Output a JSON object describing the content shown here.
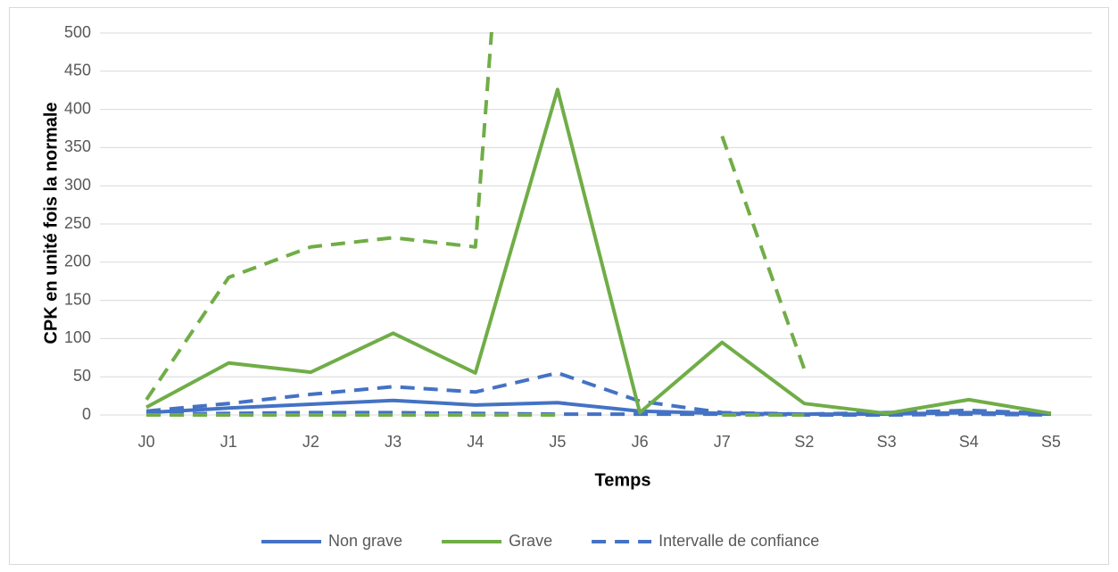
{
  "chart_data": {
    "type": "line",
    "x_label": "Temps",
    "y_label": "CPK en unité fois la normale",
    "categories": [
      "J0",
      "J1",
      "J2",
      "J3",
      "J4",
      "J5",
      "J6",
      "J7",
      "S2",
      "S3",
      "S4",
      "S5"
    ],
    "series": [
      {
        "name": "Non grave",
        "color": "#4472c4",
        "values": [
          3,
          9,
          14,
          19,
          13,
          16,
          5,
          2,
          1,
          1,
          3,
          1
        ],
        "ci_upper": [
          5,
          15,
          27,
          37,
          30,
          55,
          18,
          3,
          1,
          3,
          6,
          2
        ],
        "ci_lower": [
          1,
          2,
          3,
          3,
          2,
          1,
          1,
          1,
          0,
          0,
          1,
          0
        ]
      },
      {
        "name": "Grave",
        "color": "#70ad47",
        "values": [
          10,
          68,
          56,
          107,
          55,
          426,
          3,
          95,
          15,
          2,
          20,
          2
        ],
        "ci_upper": [
          20,
          180,
          220,
          232,
          220,
          1650,
          null,
          365,
          60,
          null,
          null,
          null
        ],
        "ci_lower": [
          0,
          0,
          0,
          0,
          0,
          0,
          null,
          0,
          0,
          null,
          null,
          null
        ]
      }
    ],
    "ci_legend": "Intervalle de confiance",
    "ylim": [
      0,
      500
    ],
    "yticks": [
      0,
      50,
      100,
      150,
      200,
      250,
      300,
      350,
      400,
      450,
      500
    ],
    "grid": true,
    "legend": "bottom"
  }
}
